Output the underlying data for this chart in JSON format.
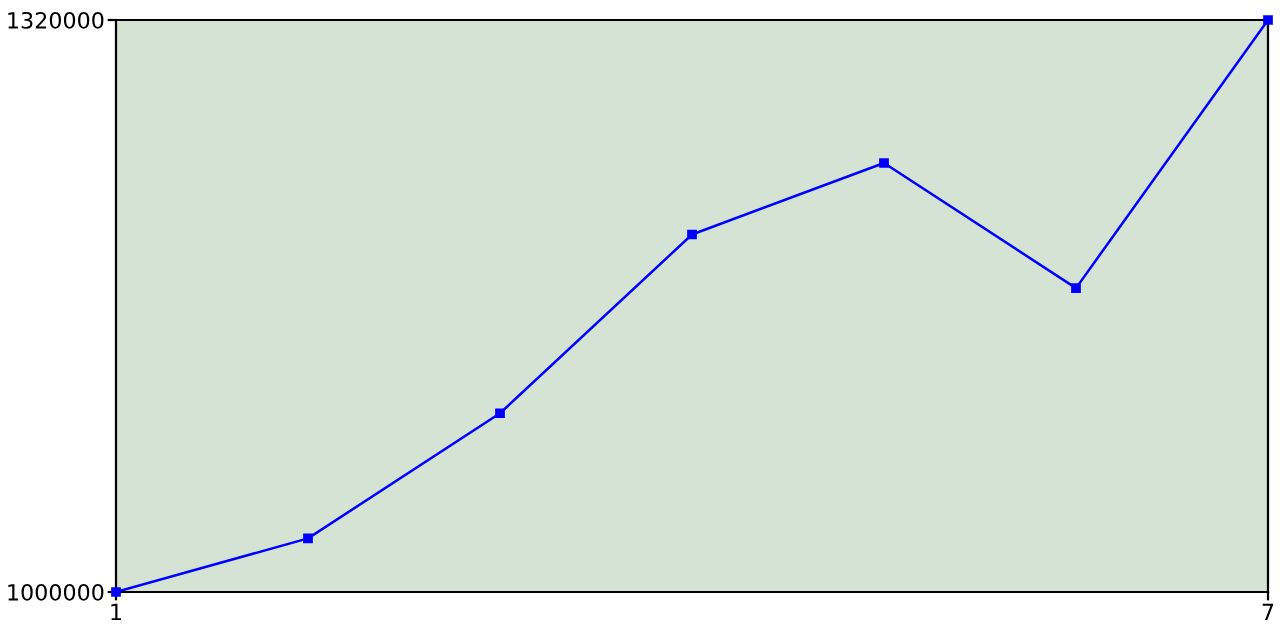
{
  "chart_data": {
    "type": "line",
    "x": [
      1,
      2,
      3,
      4,
      5,
      6,
      7
    ],
    "series": [
      {
        "color": "#0000ff",
        "values": [
          1000000,
          1030000,
          1100000,
          1200000,
          1240000,
          1170000,
          1320000
        ]
      }
    ],
    "xlim": [
      1,
      7
    ],
    "ylim": [
      1000000,
      1320000
    ],
    "xticks": [
      1,
      7
    ],
    "yticks": [
      1000000,
      1320000
    ],
    "grid": false,
    "legend": false,
    "marker": "square",
    "line_style": "solid"
  }
}
